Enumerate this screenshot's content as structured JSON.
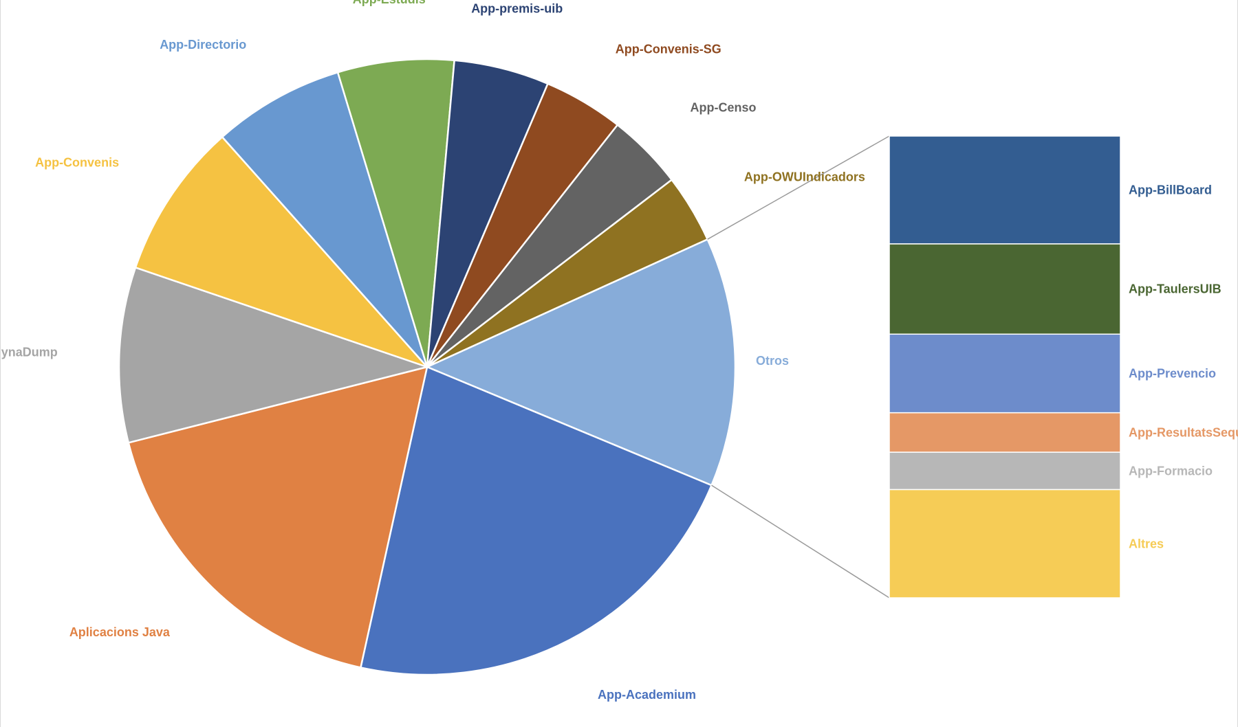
{
  "chart_data": {
    "type": "pie",
    "subtype": "bar-of-pie",
    "title": "",
    "pie": {
      "slices": [
        {
          "label": "App-Academium",
          "value": 22.2,
          "color": "#4A72BE"
        },
        {
          "label": "Aplicacions Java",
          "value": 17.6,
          "color": "#E08143"
        },
        {
          "label": "App-WebDynaDump",
          "value": 9.2,
          "color": "#A5A5A5"
        },
        {
          "label": "App-Convenis",
          "value": 8.2,
          "color": "#F5C242"
        },
        {
          "label": "App-Directorio",
          "value": 6.9,
          "color": "#6898D0"
        },
        {
          "label": "App-Estudis",
          "value": 6.1,
          "color": "#7DAA53"
        },
        {
          "label": "App-premis-uib",
          "value": 5.0,
          "color": "#2C4373"
        },
        {
          "label": "App-Convenis-SG",
          "value": 4.2,
          "color": "#8F4A20"
        },
        {
          "label": "App-Censo",
          "value": 4.0,
          "color": "#636363"
        },
        {
          "label": "App-OWUIndicadors",
          "value": 3.6,
          "color": "#8F7221"
        },
        {
          "label": "Otros",
          "value": 13.1,
          "color": "#87ACD9"
        }
      ],
      "start_label": "Otros",
      "direction": "clockwise"
    },
    "bar": {
      "parent": "Otros",
      "segments": [
        {
          "label": "App-BillBoard",
          "value": 3.06,
          "color": "#335D91"
        },
        {
          "label": "App-TaulersUIB",
          "value": 2.56,
          "color": "#4A6632"
        },
        {
          "label": "App-Prevencio",
          "value": 2.23,
          "color": "#6D8CCB"
        },
        {
          "label": "App-ResultatsSequa",
          "value": 1.12,
          "color": "#E59866"
        },
        {
          "label": "App-Formacio",
          "value": 1.06,
          "color": "#B7B7B7"
        },
        {
          "label": "Altres",
          "value": 3.07,
          "color": "#F6CC56"
        }
      ]
    },
    "connector_color": "#9a9a9a",
    "legend": "none"
  }
}
